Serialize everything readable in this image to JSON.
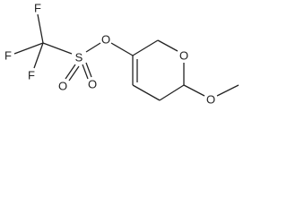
{
  "atoms": [
    {
      "label": "F"
    },
    {
      "label": "F"
    },
    {
      "label": "F"
    },
    {
      "label": "S"
    },
    {
      "label": "O"
    },
    {
      "label": "O"
    },
    {
      "label": "O"
    },
    {
      "label": "O"
    },
    {
      "label": "O"
    }
  ]
}
